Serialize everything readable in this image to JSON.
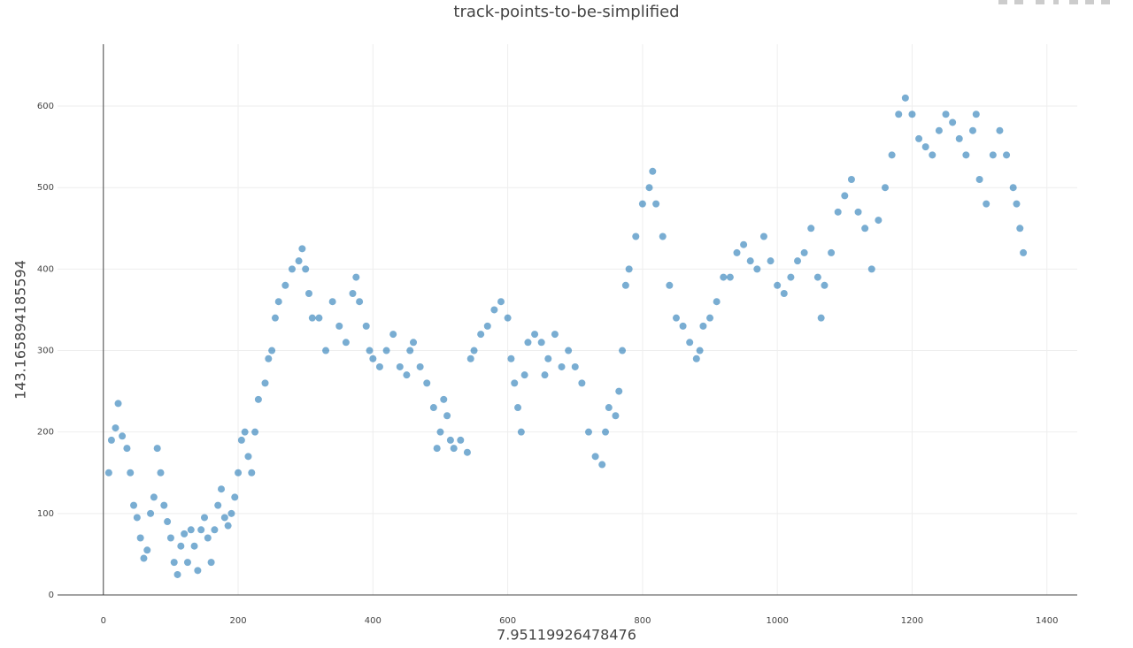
{
  "chart_data": {
    "type": "scatter",
    "title": "track-points-to-be-simplified",
    "x_label": "7.95119926478476",
    "y_label": "143.165894185594",
    "color": "#1f77b4",
    "xlim": [
      -68,
      1445
    ],
    "ylim": [
      0,
      676
    ],
    "xticks": [
      0,
      200,
      400,
      600,
      800,
      1000,
      1200,
      1400
    ],
    "yticks": [
      0,
      100,
      200,
      300,
      400,
      500,
      600
    ],
    "grid": true,
    "x": [
      8,
      12,
      18,
      22,
      28,
      35,
      40,
      45,
      50,
      55,
      60,
      65,
      70,
      75,
      80,
      85,
      90,
      95,
      100,
      105,
      110,
      115,
      120,
      125,
      130,
      135,
      140,
      145,
      150,
      155,
      160,
      165,
      170,
      175,
      180,
      185,
      190,
      195,
      200,
      205,
      210,
      215,
      220,
      225,
      230,
      240,
      245,
      250,
      255,
      260,
      270,
      280,
      290,
      295,
      300,
      305,
      310,
      320,
      330,
      340,
      350,
      360,
      370,
      375,
      380,
      390,
      395,
      400,
      410,
      420,
      430,
      440,
      450,
      455,
      460,
      470,
      480,
      490,
      495,
      500,
      505,
      510,
      515,
      520,
      530,
      540,
      545,
      550,
      560,
      570,
      580,
      590,
      600,
      605,
      610,
      615,
      620,
      625,
      630,
      640,
      650,
      655,
      660,
      670,
      680,
      690,
      700,
      710,
      720,
      730,
      740,
      745,
      750,
      760,
      765,
      770,
      775,
      780,
      790,
      800,
      810,
      815,
      820,
      830,
      840,
      850,
      860,
      870,
      880,
      885,
      890,
      900,
      910,
      920,
      930,
      940,
      950,
      960,
      970,
      980,
      990,
      1000,
      1010,
      1020,
      1030,
      1040,
      1050,
      1060,
      1065,
      1070,
      1080,
      1090,
      1100,
      1110,
      1120,
      1130,
      1140,
      1150,
      1160,
      1170,
      1180,
      1190,
      1200,
      1210,
      1220,
      1230,
      1240,
      1250,
      1260,
      1270,
      1280,
      1290,
      1295,
      1300,
      1310,
      1320,
      1330,
      1340,
      1350,
      1355,
      1360,
      1365
    ],
    "values": [
      150,
      190,
      205,
      235,
      195,
      180,
      150,
      110,
      95,
      70,
      45,
      55,
      100,
      120,
      180,
      150,
      110,
      90,
      70,
      40,
      25,
      60,
      75,
      40,
      80,
      60,
      30,
      80,
      95,
      70,
      40,
      80,
      110,
      130,
      95,
      85,
      100,
      120,
      150,
      190,
      200,
      170,
      150,
      200,
      240,
      260,
      290,
      300,
      340,
      360,
      380,
      400,
      410,
      425,
      400,
      370,
      340,
      340,
      300,
      360,
      330,
      310,
      370,
      390,
      360,
      330,
      300,
      290,
      280,
      300,
      320,
      280,
      270,
      300,
      310,
      280,
      260,
      230,
      180,
      200,
      240,
      220,
      190,
      180,
      190,
      175,
      290,
      300,
      320,
      330,
      350,
      360,
      340,
      290,
      260,
      230,
      200,
      270,
      310,
      320,
      310,
      270,
      290,
      320,
      280,
      300,
      280,
      260,
      200,
      170,
      160,
      200,
      230,
      220,
      250,
      300,
      380,
      400,
      440,
      480,
      500,
      520,
      480,
      440,
      380,
      340,
      330,
      310,
      290,
      300,
      330,
      340,
      360,
      390,
      390,
      420,
      430,
      410,
      400,
      440,
      410,
      380,
      370,
      390,
      410,
      420,
      450,
      390,
      340,
      380,
      420,
      470,
      490,
      510,
      470,
      450,
      400,
      460,
      500,
      540,
      590,
      610,
      590,
      560,
      550,
      540,
      570,
      590,
      580,
      560,
      540,
      570,
      590,
      510,
      480,
      540,
      570,
      540,
      500,
      480,
      450,
      420
    ]
  }
}
